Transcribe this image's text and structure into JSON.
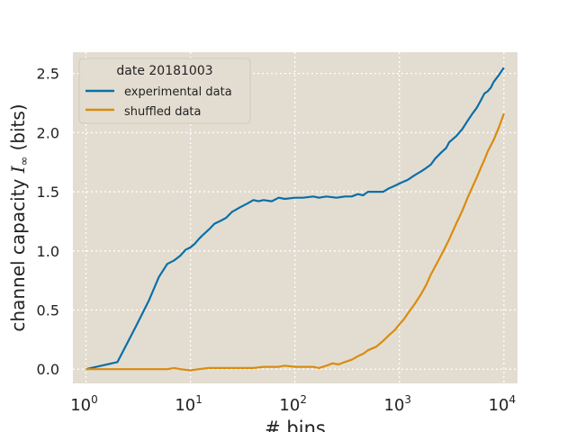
{
  "chart_data": {
    "type": "line",
    "title": "",
    "xlabel": "# bins",
    "ylabel": "channel capacity",
    "ylabel_symbol": "I",
    "ylabel_subscript": "∞",
    "ylabel_units": "(bits)",
    "xscale": "log",
    "xlim": [
      0.75,
      13500
    ],
    "ylim": [
      -0.12,
      2.68
    ],
    "grid": true,
    "legend_position": "top-left",
    "legend_title": "date 20181003",
    "x_ticks": [
      {
        "value": 1,
        "base": "10",
        "exp": "0"
      },
      {
        "value": 10,
        "base": "10",
        "exp": "1"
      },
      {
        "value": 100,
        "base": "10",
        "exp": "2"
      },
      {
        "value": 1000,
        "base": "10",
        "exp": "3"
      },
      {
        "value": 10000,
        "base": "10",
        "exp": "4"
      }
    ],
    "y_ticks": [
      {
        "value": 0.0,
        "label": "0.0"
      },
      {
        "value": 0.5,
        "label": "0.5"
      },
      {
        "value": 1.0,
        "label": "1.0"
      },
      {
        "value": 1.5,
        "label": "1.5"
      },
      {
        "value": 2.0,
        "label": "2.0"
      },
      {
        "value": 2.5,
        "label": "2.5"
      }
    ],
    "colors": {
      "background": "#e3ddd1",
      "grid": "#ffffff"
    },
    "series": [
      {
        "name": "experimental data",
        "color": "#0a6fa8",
        "x": [
          1,
          2,
          3,
          4,
          5,
          6,
          7,
          8,
          9,
          10,
          11,
          12,
          13,
          15,
          17,
          20,
          22,
          25,
          30,
          35,
          40,
          45,
          50,
          60,
          70,
          80,
          100,
          120,
          150,
          170,
          200,
          250,
          300,
          350,
          400,
          450,
          500,
          600,
          700,
          800,
          900,
          1000,
          1200,
          1400,
          1600,
          1800,
          2000,
          2200,
          2500,
          2800,
          3000,
          3500,
          4000,
          4500,
          5000,
          5500,
          6000,
          6500,
          7000,
          7500,
          8000,
          9000,
          10000
        ],
        "y": [
          0.0,
          0.06,
          0.36,
          0.58,
          0.78,
          0.89,
          0.92,
          0.96,
          1.01,
          1.03,
          1.06,
          1.1,
          1.13,
          1.18,
          1.23,
          1.26,
          1.28,
          1.33,
          1.37,
          1.4,
          1.43,
          1.42,
          1.43,
          1.42,
          1.45,
          1.44,
          1.45,
          1.45,
          1.46,
          1.45,
          1.46,
          1.45,
          1.46,
          1.46,
          1.48,
          1.47,
          1.5,
          1.5,
          1.5,
          1.53,
          1.55,
          1.57,
          1.6,
          1.64,
          1.67,
          1.7,
          1.73,
          1.78,
          1.83,
          1.87,
          1.92,
          1.97,
          2.03,
          2.1,
          2.16,
          2.21,
          2.27,
          2.33,
          2.35,
          2.38,
          2.43,
          2.49,
          2.55
        ]
      },
      {
        "name": "shuffled data",
        "color": "#d98c0f",
        "x": [
          1,
          2,
          3,
          4,
          5,
          6,
          7,
          8,
          10,
          12,
          15,
          20,
          25,
          30,
          40,
          50,
          60,
          70,
          80,
          100,
          120,
          150,
          170,
          200,
          230,
          260,
          300,
          350,
          400,
          450,
          500,
          600,
          700,
          800,
          900,
          1000,
          1100,
          1200,
          1400,
          1600,
          1800,
          2000,
          2300,
          2600,
          3000,
          3500,
          4000,
          4500,
          5000,
          5500,
          6000,
          6500,
          7000,
          8000,
          9000,
          10000
        ],
        "y": [
          0.0,
          0.0,
          0.0,
          0.0,
          0.0,
          0.0,
          0.01,
          0.0,
          -0.01,
          0.0,
          0.01,
          0.01,
          0.01,
          0.01,
          0.01,
          0.02,
          0.02,
          0.02,
          0.03,
          0.02,
          0.02,
          0.02,
          0.01,
          0.03,
          0.05,
          0.04,
          0.06,
          0.08,
          0.11,
          0.13,
          0.16,
          0.19,
          0.24,
          0.29,
          0.33,
          0.38,
          0.42,
          0.47,
          0.55,
          0.63,
          0.71,
          0.8,
          0.9,
          0.99,
          1.1,
          1.23,
          1.34,
          1.45,
          1.54,
          1.62,
          1.7,
          1.77,
          1.84,
          1.94,
          2.05,
          2.16
        ]
      }
    ]
  }
}
